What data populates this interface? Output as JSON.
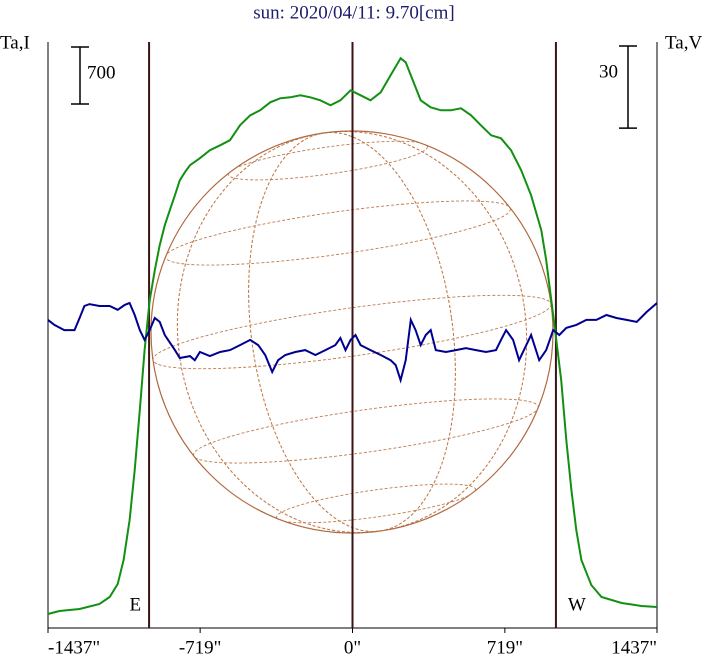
{
  "chart_data": {
    "type": "line",
    "title": "sun: 2020/04/11: 9.70[cm]",
    "y_label": "Ta,I",
    "y2_label": "Ta,V",
    "scale_bar": 700,
    "scale_bar2": 30,
    "xlim": [
      -1437,
      1437
    ],
    "xticks": [
      {
        "value": -1437,
        "label": "-1437\""
      },
      {
        "value": -719,
        "label": "-719\""
      },
      {
        "value": 0,
        "label": "0\""
      },
      {
        "value": 719,
        "label": "719\""
      },
      {
        "value": 1437,
        "label": "1437\""
      }
    ],
    "ylim": [
      0,
      7200
    ],
    "y2lim": [
      -107,
      107
    ],
    "markers": [
      {
        "x": -960,
        "label": "E"
      },
      {
        "x": 0
      },
      {
        "x": 960,
        "label": "W"
      }
    ],
    "series": [
      {
        "name": "I",
        "color": "#129012",
        "x": [
          -1437,
          -1383,
          -1288,
          -1194,
          -1146,
          -1108,
          -1080,
          -1052,
          -1028,
          -1004,
          -981,
          -957,
          -933,
          -910,
          -886,
          -862,
          -838,
          -815,
          -791,
          -767,
          -720,
          -673,
          -625,
          -578,
          -531,
          -483,
          -436,
          -388,
          -341,
          -294,
          -246,
          -199,
          -152,
          -104,
          -57,
          -9,
          38,
          85,
          133,
          180,
          227,
          251,
          275,
          322,
          369,
          417,
          464,
          512,
          559,
          606,
          654,
          701,
          748,
          796,
          843,
          891,
          914,
          938,
          962,
          985,
          1009,
          1033,
          1056,
          1080,
          1127,
          1175,
          1270,
          1364,
          1437
        ],
        "values": [
          172,
          209,
          233,
          295,
          381,
          540,
          835,
          1326,
          1940,
          2677,
          3414,
          4028,
          4396,
          4703,
          4949,
          5133,
          5317,
          5501,
          5600,
          5686,
          5772,
          5870,
          5931,
          5993,
          6177,
          6300,
          6361,
          6459,
          6508,
          6521,
          6545,
          6521,
          6484,
          6422,
          6484,
          6607,
          6545,
          6484,
          6582,
          6791,
          7000,
          6950,
          6791,
          6484,
          6398,
          6361,
          6361,
          6386,
          6300,
          6177,
          6054,
          6017,
          5870,
          5624,
          5317,
          4888,
          4519,
          4028,
          3537,
          3046,
          2309,
          1695,
          1203,
          835,
          528,
          381,
          307,
          270,
          258
        ]
      },
      {
        "name": "V",
        "color": "#000090",
        "axis": "y2",
        "x": [
          -1437,
          -1407,
          -1360,
          -1312,
          -1288,
          -1265,
          -1241,
          -1194,
          -1146,
          -1108,
          -1075,
          -1052,
          -1028,
          -1004,
          -981,
          -957,
          -933,
          -910,
          -886,
          -838,
          -815,
          -767,
          -744,
          -720,
          -673,
          -625,
          -578,
          -531,
          -483,
          -445,
          -412,
          -379,
          -351,
          -317,
          -270,
          -223,
          -175,
          -128,
          -81,
          -57,
          -33,
          -9,
          14,
          38,
          85,
          133,
          180,
          204,
          227,
          251,
          275,
          298,
          322,
          346,
          369,
          393,
          441,
          488,
          535,
          583,
          630,
          677,
          701,
          725,
          758,
          786,
          820,
          843,
          881,
          914,
          947,
          976,
          1009,
          1056,
          1104,
          1151,
          1198,
          1246,
          1293,
          1341,
          1388,
          1437
        ],
        "values": [
          5.5,
          3.7,
          1.8,
          1.8,
          6.2,
          10.6,
          11.3,
          10.6,
          10.6,
          9.2,
          11,
          11.7,
          7.3,
          1.8,
          -1.8,
          1.8,
          6.2,
          4.8,
          0,
          -5.5,
          -8.4,
          -7.7,
          -9.2,
          -6.2,
          -7.7,
          -6.2,
          -5.5,
          -3.7,
          -1.8,
          -3.7,
          -7.3,
          -13.5,
          -9.2,
          -7.3,
          -6.2,
          -5.5,
          -7.3,
          -5.5,
          -3.7,
          -1.1,
          -5.5,
          -1.8,
          0,
          -3.7,
          -5.5,
          -7.3,
          -9.2,
          -11,
          -16.5,
          -9.2,
          5.5,
          1.8,
          -3.7,
          0,
          1.8,
          -5.5,
          -6.2,
          -5.5,
          -4.8,
          -5.5,
          -6.2,
          -5.5,
          -1.8,
          1.8,
          -1.8,
          -9.2,
          -3.7,
          0,
          -9.2,
          -5.5,
          1.8,
          0,
          2.6,
          3.7,
          5.5,
          5.5,
          7.3,
          6.2,
          5.5,
          4.8,
          8.4,
          11.7
        ]
      }
    ]
  }
}
